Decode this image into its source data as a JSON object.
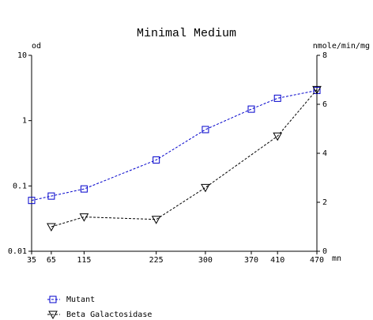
{
  "chart_data": {
    "type": "line",
    "title": "Minimal Medium",
    "x_label": "mn",
    "y_label": "od",
    "y2_label": "nmole/min/mg",
    "xlim": [
      35,
      470
    ],
    "xticks": [
      35,
      65,
      115,
      225,
      300,
      370,
      410,
      470
    ],
    "ylim": [
      0.01,
      10
    ],
    "yticks": [
      0.01,
      0.1,
      1,
      10
    ],
    "yscale": "log",
    "y2lim": [
      0,
      8
    ],
    "y2ticks": [
      0,
      2,
      4,
      6,
      8
    ],
    "series": [
      {
        "name": "Mutant",
        "color": "#0000cc",
        "marker": "square",
        "x": [
          35,
          65,
          115,
          225,
          300,
          370,
          410,
          470
        ],
        "values": [
          0.06,
          0.07,
          0.09,
          0.25,
          0.73,
          1.5,
          2.2,
          2.9
        ]
      },
      {
        "name": "Beta Galactosidase",
        "color": "#000000",
        "marker": "triangle-down",
        "axis": "y2",
        "x": [
          65,
          115,
          225,
          300,
          410,
          470
        ],
        "values": [
          1.0,
          1.4,
          1.3,
          2.6,
          4.7,
          6.6
        ]
      }
    ]
  }
}
